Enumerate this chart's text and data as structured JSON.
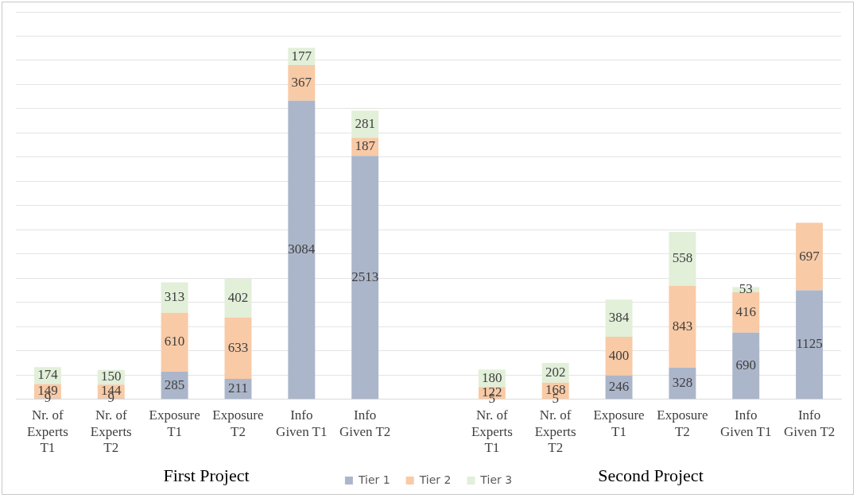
{
  "chart_data": {
    "type": "bar",
    "stacked": true,
    "categories": [
      "Nr. of Experts T1",
      "Nr. of Experts T2",
      "Exposure T1",
      "Exposure T2",
      "Info Given T1",
      "Info Given T2",
      null,
      "Nr. of Experts T1",
      "Nr. of Experts T2",
      "Exposure T1",
      "Exposure T2",
      "Info Given T1",
      "Info Given T2"
    ],
    "series": [
      {
        "name": "Tier 1",
        "color": "#acb6ca",
        "values": [
          9,
          9,
          285,
          211,
          3084,
          2513,
          null,
          5,
          5,
          246,
          328,
          690,
          1125
        ]
      },
      {
        "name": "Tier 2",
        "color": "#f8caa6",
        "values": [
          149,
          144,
          610,
          633,
          367,
          187,
          null,
          122,
          168,
          400,
          843,
          416,
          697
        ]
      },
      {
        "name": "Tier 3",
        "color": "#e2efd9",
        "values": [
          174,
          150,
          313,
          402,
          177,
          281,
          null,
          180,
          202,
          384,
          558,
          53,
          null
        ]
      }
    ],
    "ylim": [
      0,
      4000
    ],
    "yticks": [
      {
        "value": 0,
        "label": null
      },
      {
        "value": 250,
        "label": null
      },
      {
        "value": 500,
        "label": null
      },
      {
        "value": 750,
        "label": null
      },
      {
        "value": 1000,
        "label": null
      },
      {
        "value": 1250,
        "label": null
      },
      {
        "value": 1500,
        "label": null
      },
      {
        "value": 1750,
        "label": null
      },
      {
        "value": 2000,
        "label": null
      },
      {
        "value": 2250,
        "label": null
      },
      {
        "value": 2500,
        "label": null
      },
      {
        "value": 2750,
        "label": null
      },
      {
        "value": 3000,
        "label": null
      },
      {
        "value": 3250,
        "label": null
      },
      {
        "value": 3500,
        "label": null
      },
      {
        "value": 3750,
        "label": null
      },
      {
        "value": 4000,
        "label": null
      }
    ],
    "tick_labels": "x",
    "grid": "y",
    "legend": "bottom",
    "data_labels": true,
    "annotations": [
      "First Project",
      "Second Project"
    ]
  }
}
